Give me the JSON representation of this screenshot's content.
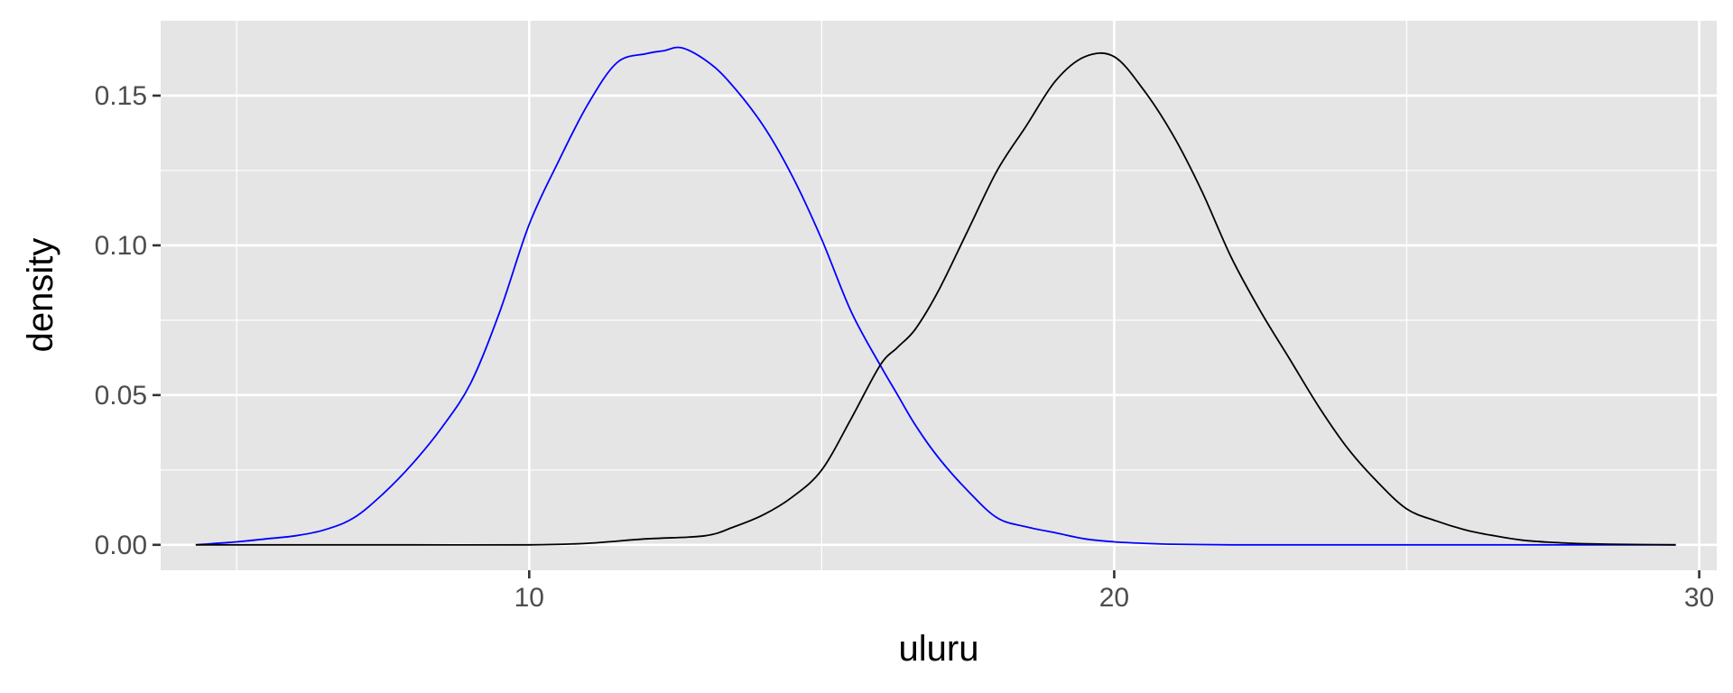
{
  "chart_data": {
    "type": "line",
    "title": "",
    "xlabel": "uluru",
    "ylabel": "density",
    "xlim": [
      3.7,
      30.3
    ],
    "ylim": [
      -0.0085,
      0.175
    ],
    "x_ticks": [
      10,
      20,
      30
    ],
    "x_tick_labels": [
      "10",
      "20",
      "30"
    ],
    "x_minor_ticks": [
      5,
      15,
      25
    ],
    "y_ticks": [
      0.0,
      0.05,
      0.1,
      0.15
    ],
    "y_tick_labels": [
      "0.00",
      "0.05",
      "0.10",
      "0.15"
    ],
    "y_minor_ticks": [
      0.025,
      0.075,
      0.125
    ],
    "grid": true,
    "legend": "none",
    "panel_background": "#e5e5e5",
    "grid_color": "#ffffff",
    "series": [
      {
        "color": "#0000ff",
        "x": [
          4.3,
          5.0,
          5.5,
          6.0,
          6.5,
          7.0,
          7.5,
          8.0,
          8.5,
          9.0,
          9.5,
          10.0,
          10.5,
          11.0,
          11.5,
          12.0,
          12.3,
          12.6,
          13.0,
          13.4,
          14.0,
          14.5,
          15.0,
          15.5,
          16.0,
          16.3,
          16.6,
          17.0,
          17.5,
          18.0,
          18.5,
          19.0,
          19.5,
          20.0,
          20.5,
          21.0,
          21.5,
          22.0,
          22.5,
          23.0,
          24.0,
          25.0,
          26.0,
          27.0,
          28.0,
          29.6
        ],
        "y": [
          0.0,
          0.001,
          0.002,
          0.003,
          0.005,
          0.009,
          0.017,
          0.027,
          0.039,
          0.054,
          0.078,
          0.107,
          0.128,
          0.147,
          0.161,
          0.164,
          0.165,
          0.166,
          0.162,
          0.155,
          0.14,
          0.123,
          0.102,
          0.078,
          0.06,
          0.05,
          0.04,
          0.029,
          0.018,
          0.009,
          0.006,
          0.004,
          0.002,
          0.001,
          0.0005,
          0.0002,
          0.0001,
          0.0,
          0.0,
          0.0,
          0.0,
          0.0,
          0.0,
          0.0,
          0.0,
          0.0
        ]
      },
      {
        "color": "#000000",
        "x": [
          4.3,
          6.0,
          8.0,
          10.0,
          11.0,
          12.0,
          13.0,
          13.5,
          14.0,
          14.5,
          15.0,
          15.5,
          16.0,
          16.3,
          16.6,
          17.0,
          17.5,
          18.0,
          18.5,
          19.0,
          19.5,
          20.0,
          20.5,
          21.0,
          21.5,
          22.0,
          22.5,
          23.0,
          23.5,
          24.0,
          24.5,
          25.0,
          25.5,
          26.0,
          26.5,
          27.0,
          27.5,
          28.0,
          28.5,
          29.0,
          29.6
        ],
        "y": [
          0.0,
          0.0,
          0.0,
          0.0,
          0.0005,
          0.002,
          0.003,
          0.006,
          0.01,
          0.016,
          0.025,
          0.042,
          0.06,
          0.066,
          0.072,
          0.085,
          0.105,
          0.125,
          0.14,
          0.155,
          0.163,
          0.163,
          0.152,
          0.137,
          0.118,
          0.096,
          0.078,
          0.062,
          0.046,
          0.032,
          0.021,
          0.012,
          0.008,
          0.005,
          0.003,
          0.0015,
          0.0008,
          0.0004,
          0.0002,
          0.0001,
          0.0
        ]
      }
    ]
  }
}
